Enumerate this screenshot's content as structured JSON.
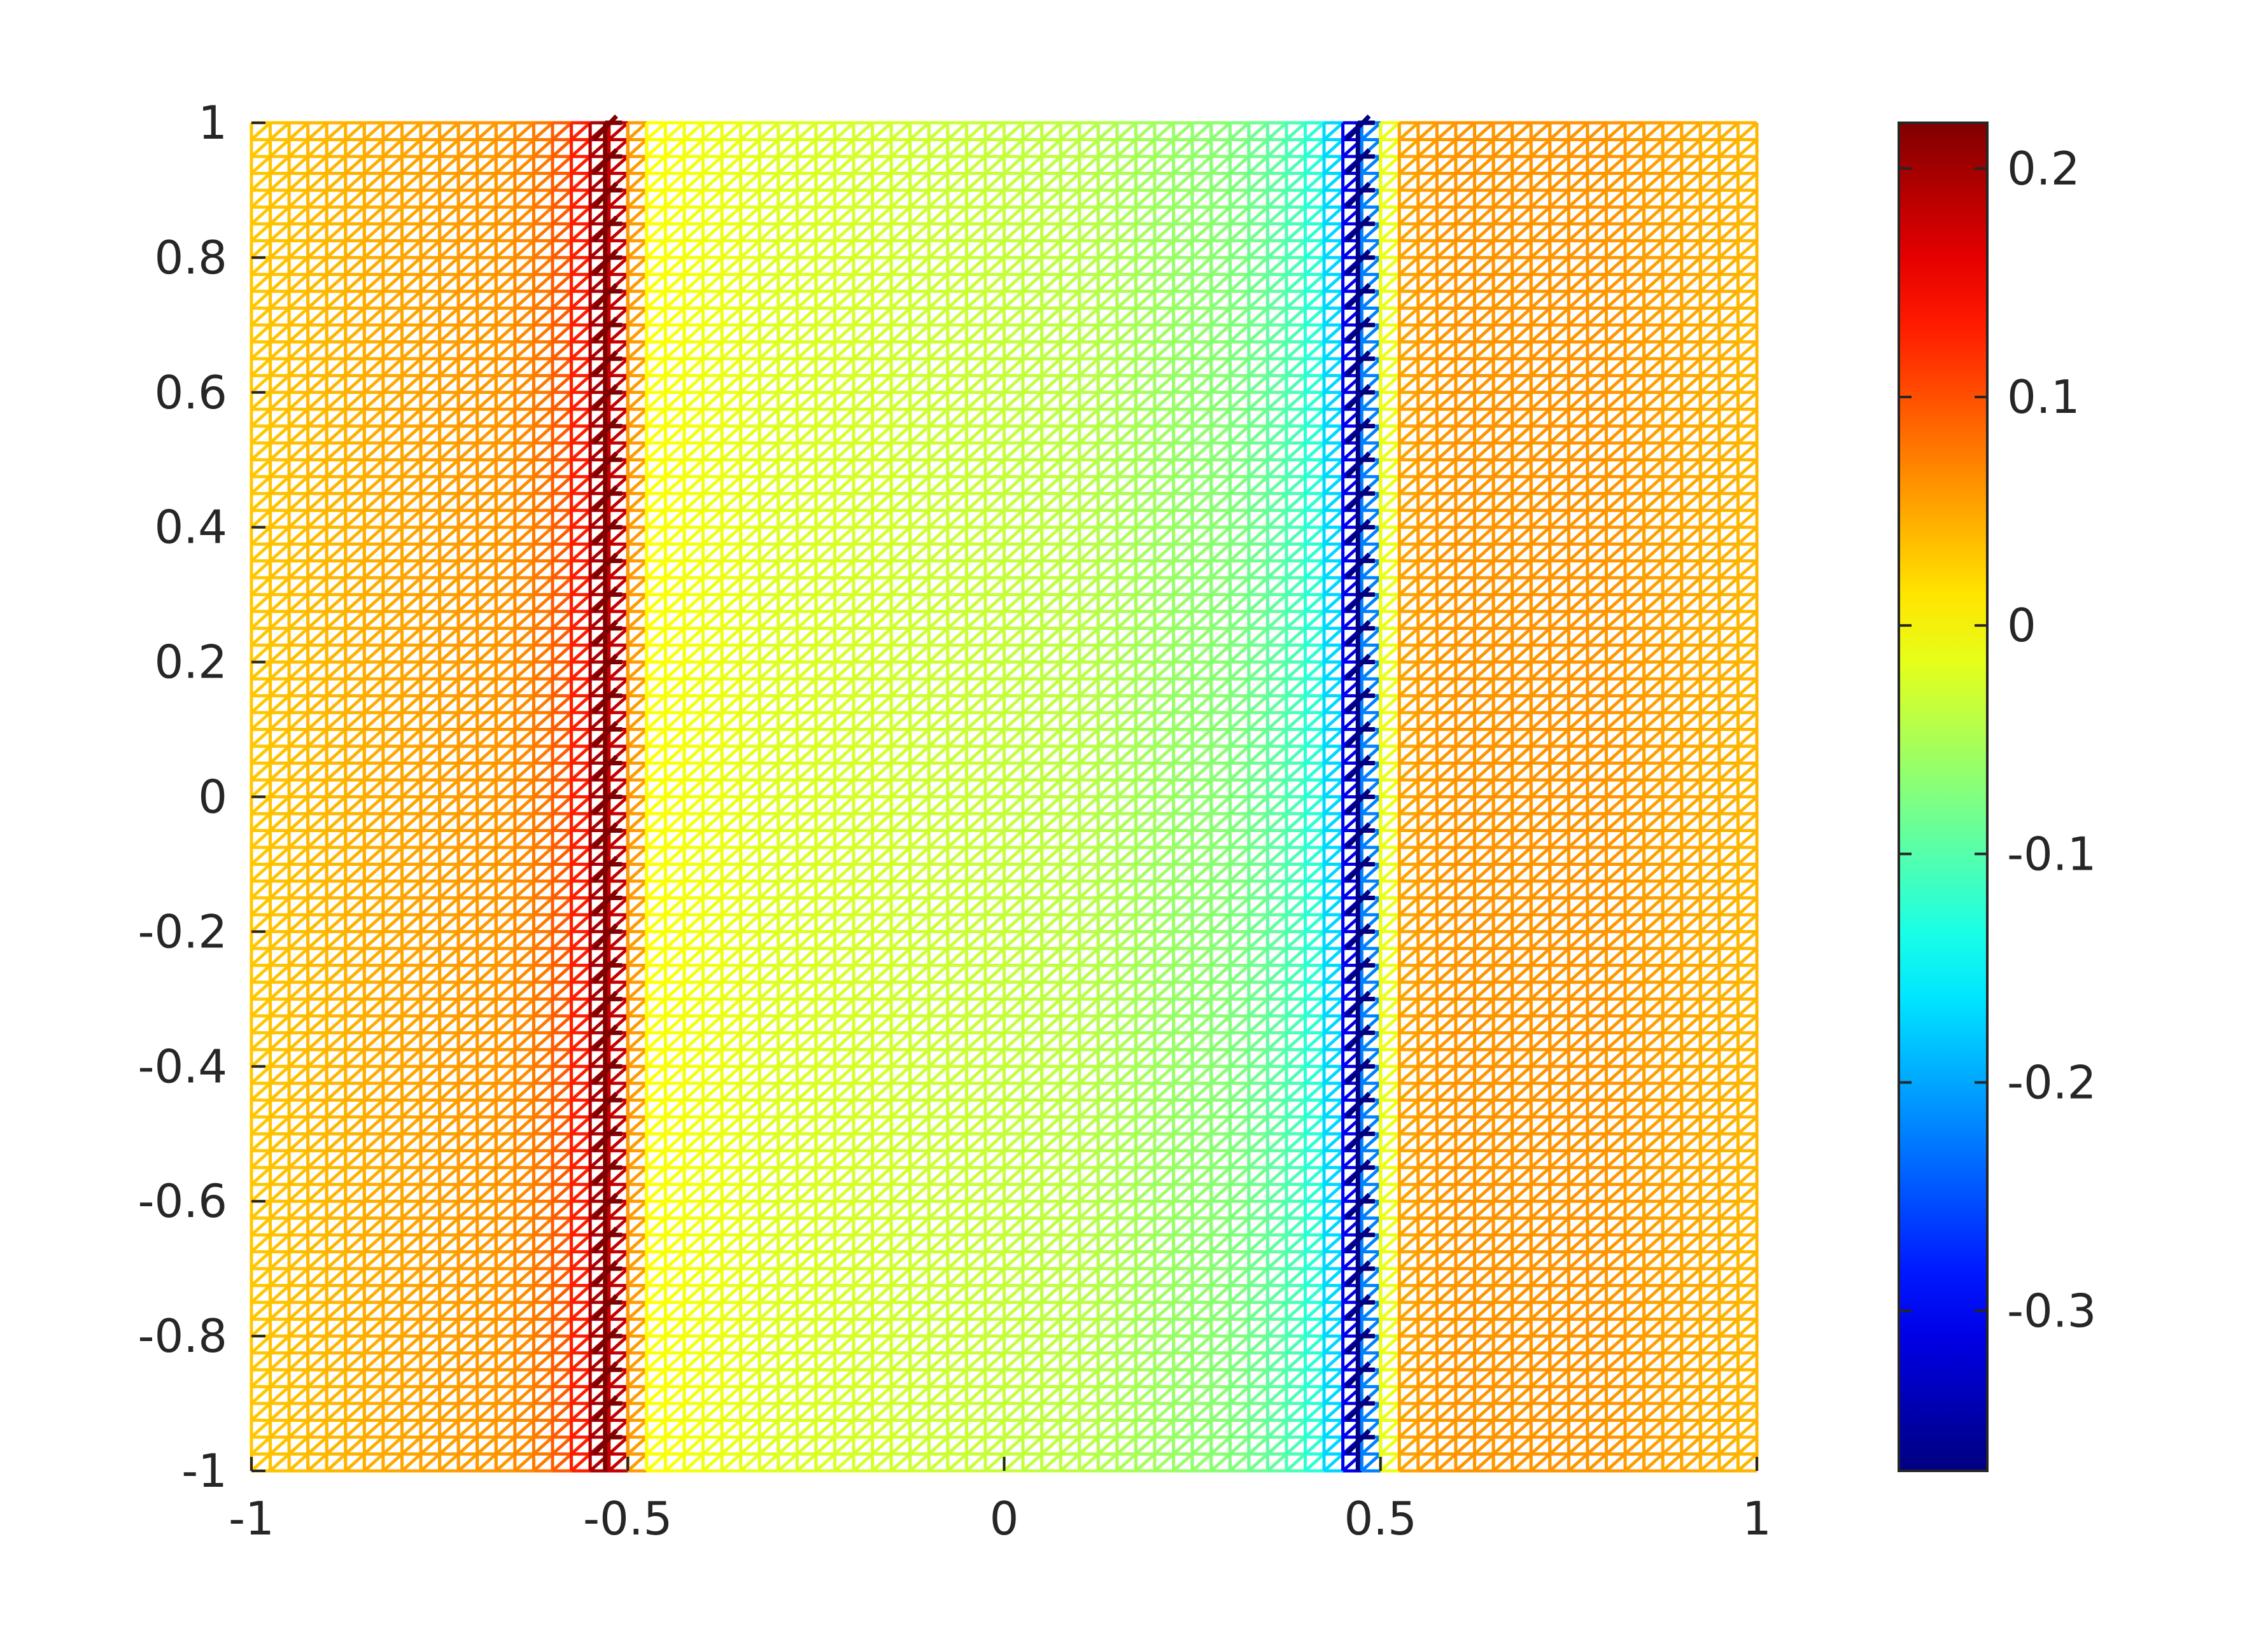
{
  "chart_data": {
    "type": "heatmap",
    "title": "",
    "xlabel": "",
    "ylabel": "",
    "xlim": [
      -1,
      1
    ],
    "ylim": [
      -1,
      1
    ],
    "grid": false,
    "legend": "none",
    "colormap": "jet",
    "xticks": [
      -1,
      -0.5,
      0,
      0.5,
      1
    ],
    "xtick_labels": [
      "-1",
      "-0.5",
      "0",
      "0.5",
      "1"
    ],
    "yticks": [
      1,
      0.8,
      0.6,
      0.4,
      0.2,
      0,
      -0.2,
      -0.4,
      -0.6,
      -0.8,
      -1
    ],
    "ytick_labels": [
      "1",
      "0.8",
      "0.6",
      "0.4",
      "0.2",
      "0",
      "-0.2",
      "-0.4",
      "-0.6",
      "-0.8",
      "-1"
    ],
    "colorbar": {
      "range": [
        -0.37,
        0.22
      ],
      "ticks": [
        0.2,
        0.1,
        0,
        -0.1,
        -0.2,
        -0.3
      ],
      "tick_labels": [
        "0.2",
        "0.1",
        "0",
        "-0.1",
        "-0.2",
        "-0.3"
      ]
    },
    "mesh": {
      "divisions": 80,
      "style": "triangulated grid, values constant along y"
    },
    "profile": {
      "x": [
        -1.0,
        -0.8,
        -0.65,
        -0.6,
        -0.58,
        -0.55,
        -0.53,
        -0.5,
        -0.48,
        -0.3,
        -0.1,
        0.1,
        0.3,
        0.38,
        0.42,
        0.45,
        0.47,
        0.49,
        0.52,
        0.6,
        0.8,
        1.0
      ],
      "value": [
        0.03,
        0.05,
        0.06,
        0.08,
        0.1,
        0.15,
        0.22,
        0.15,
        0.0,
        -0.02,
        -0.03,
        -0.04,
        -0.07,
        -0.1,
        -0.13,
        -0.2,
        -0.37,
        -0.2,
        0.05,
        0.06,
        0.06,
        0.04
      ]
    },
    "interface_lines": [
      {
        "x": -0.53,
        "value": 0.22
      },
      {
        "x": 0.47,
        "value": -0.37
      }
    ]
  }
}
